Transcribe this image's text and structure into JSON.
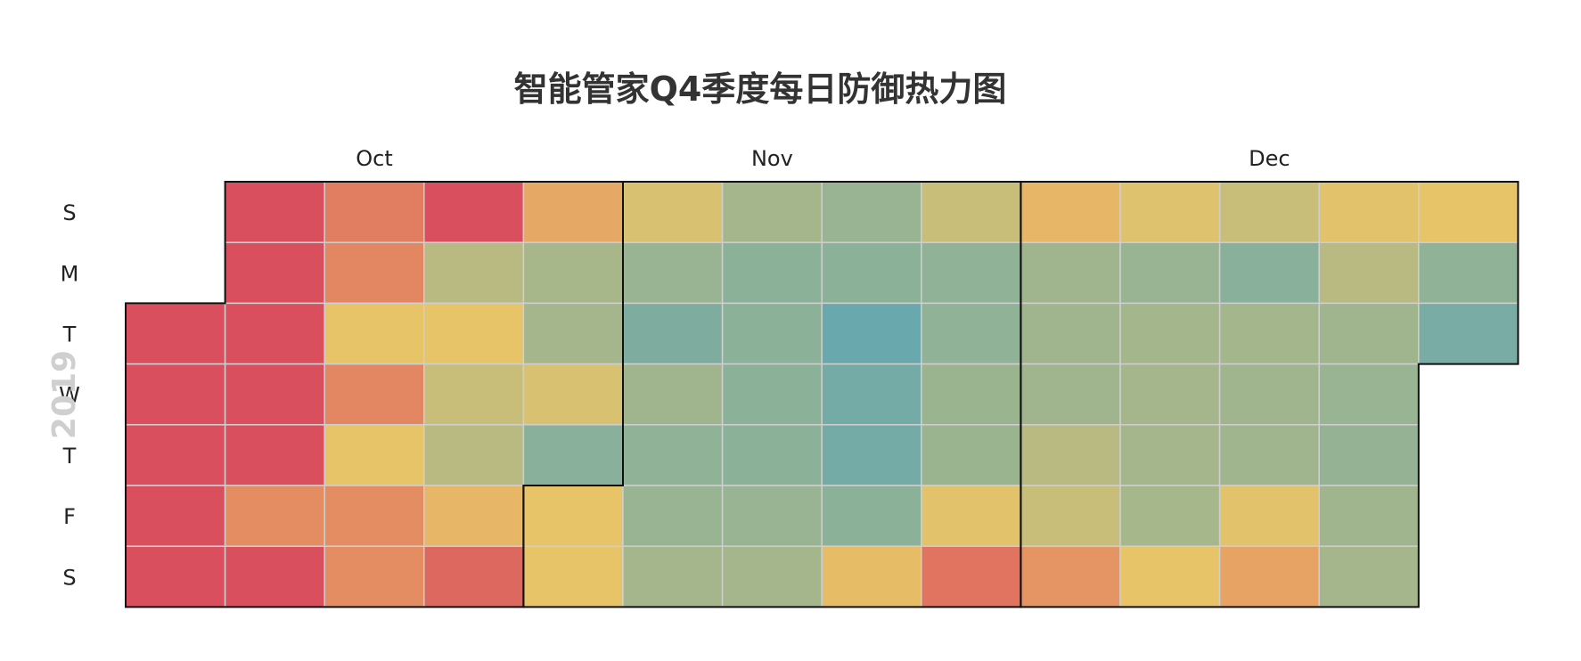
{
  "chart_data": {
    "type": "heatmap",
    "title": "智能管家Q4季度每日防御热力图",
    "year": "2019",
    "day_labels": [
      "S",
      "M",
      "T",
      "W",
      "T",
      "F",
      "S"
    ],
    "months": [
      {
        "name": "Oct",
        "first_col": 0,
        "last_col": 4,
        "first_row": 2,
        "last_col_last_row": 4
      },
      {
        "name": "Nov",
        "first_col": 4,
        "last_col": 8,
        "first_row": 5,
        "last_col_last_row": 6
      },
      {
        "name": "Dec",
        "first_col": 9,
        "last_col": 13,
        "first_row": 0,
        "last_col_last_row": 2
      }
    ],
    "value_range": [
      0,
      10
    ],
    "color_scale": [
      "#5fa5b3",
      "#88b09a",
      "#a8b78a",
      "#e8c468",
      "#e48d62",
      "#d94f5e"
    ],
    "weeks": [
      [
        null,
        null,
        10,
        10,
        10,
        10,
        10
      ],
      [
        10,
        10,
        10,
        10,
        10,
        8,
        10
      ],
      [
        8.5,
        8.2,
        6,
        8.2,
        6,
        8,
        8
      ],
      [
        10,
        4.5,
        6,
        5,
        4.5,
        6.5,
        9.2
      ],
      [
        7,
        4,
        3.8,
        5.5,
        2,
        6,
        6
      ],
      [
        5.5,
        3,
        1.5,
        3.5,
        2.5,
        3,
        3.8
      ],
      [
        3.8,
        2.2,
        2.2,
        2.2,
        2.2,
        3,
        3.8
      ],
      [
        3,
        2.2,
        0.5,
        1,
        1,
        2.2,
        6.3
      ],
      [
        5,
        2.5,
        2.5,
        3.2,
        3.2,
        5.8,
        8.8
      ],
      [
        6.5,
        3.5,
        3.5,
        3.5,
        4.5,
        5,
        7.7
      ],
      [
        5.7,
        3,
        3.7,
        3.8,
        3.8,
        3.9,
        6
      ],
      [
        5,
        2,
        3.7,
        3.5,
        3.5,
        5.8,
        7.2
      ],
      [
        5.8,
        4.5,
        3.5,
        3,
        2.8,
        3.5,
        3.8
      ],
      [
        6,
        2.5,
        1.2,
        null,
        null,
        null,
        null
      ]
    ]
  }
}
